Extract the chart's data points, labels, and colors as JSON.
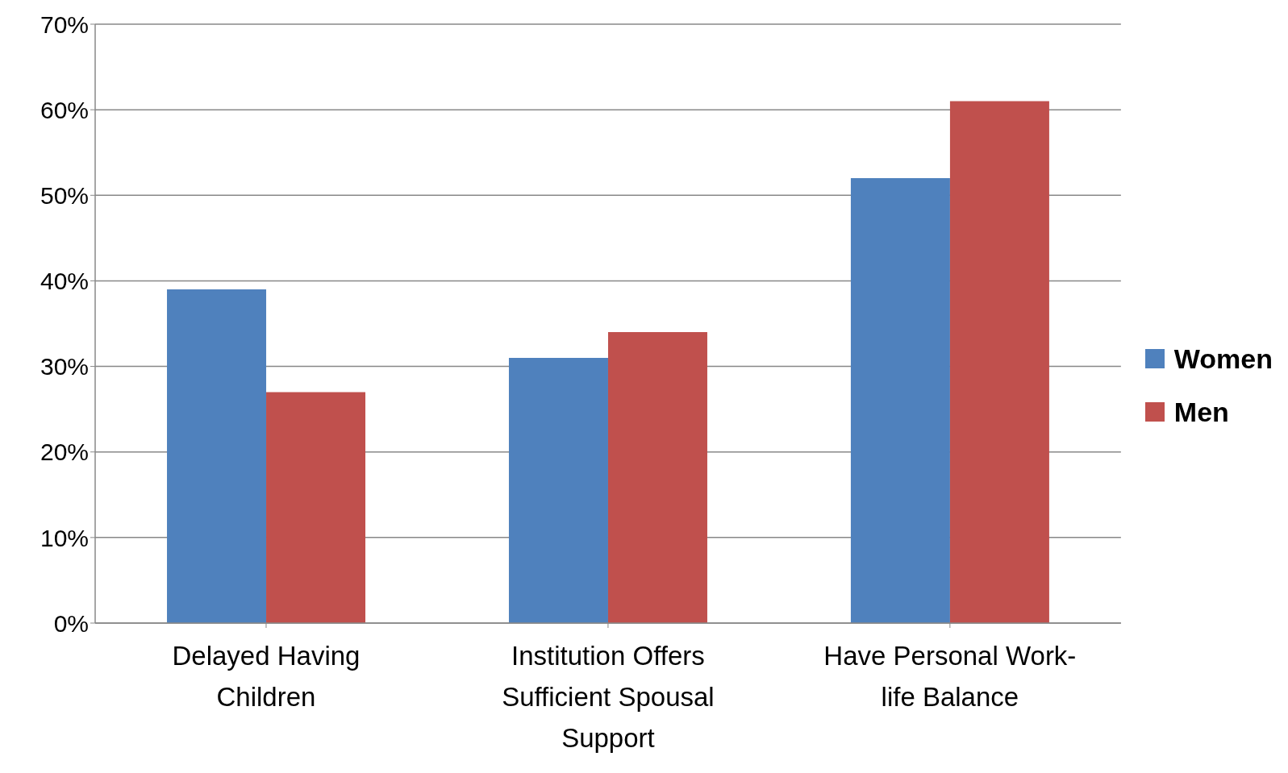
{
  "chart_data": {
    "type": "bar",
    "categories": [
      "Delayed Having Children",
      "Institution Offers Sufficient Spousal Support",
      "Have Personal Work-life Balance"
    ],
    "series": [
      {
        "name": "Women",
        "color": "#4f81bd",
        "values": [
          39,
          31,
          52
        ]
      },
      {
        "name": "Men",
        "color": "#c0504d",
        "values": [
          27,
          34,
          61
        ]
      }
    ],
    "ylim": [
      0,
      70
    ],
    "yticks": [
      {
        "value": 0,
        "label": "0%"
      },
      {
        "value": 10,
        "label": "10%"
      },
      {
        "value": 20,
        "label": "20%"
      },
      {
        "value": 30,
        "label": "30%"
      },
      {
        "value": 40,
        "label": "40%"
      },
      {
        "value": 50,
        "label": "50%"
      },
      {
        "value": 60,
        "label": "60%"
      },
      {
        "value": 70,
        "label": "70%"
      }
    ],
    "grid": "y",
    "legend": "right"
  }
}
